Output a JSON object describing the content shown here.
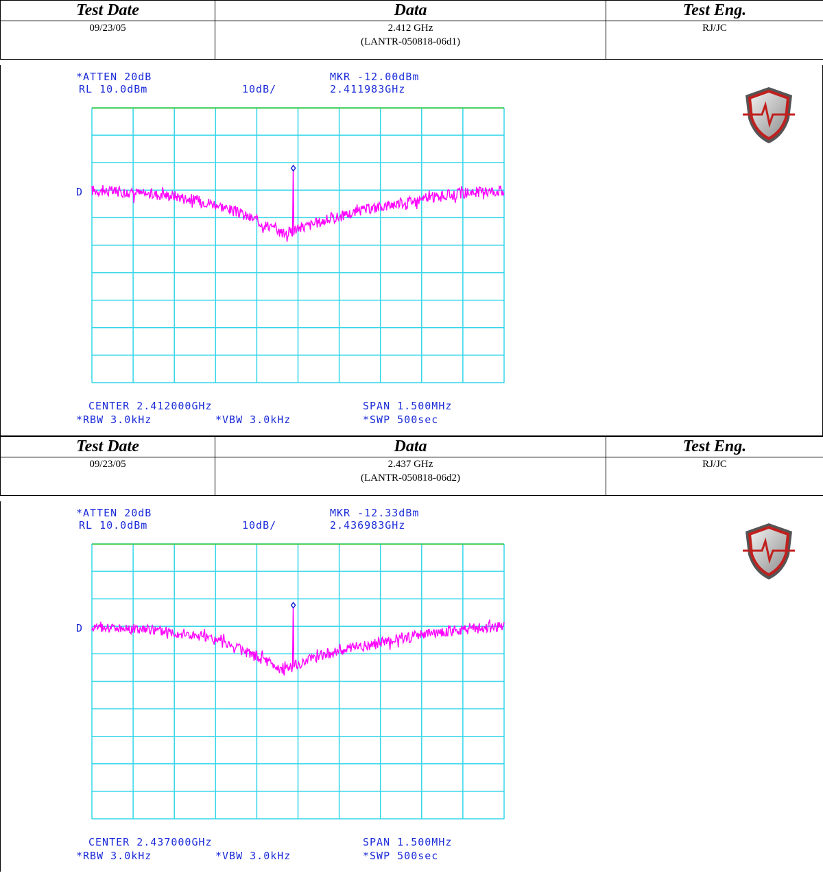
{
  "headers": {
    "test_date": "Test Date",
    "data": "Data",
    "test_eng": "Test Eng."
  },
  "colors": {
    "grid": "#33d6e8",
    "trace": "#ff00ff",
    "ref_line": "#44cc44",
    "text": "#1a2bd8",
    "marker": "#1a2bd8"
  },
  "logo_icon": "shield-waveform-icon",
  "chart_data": [
    {
      "type": "line",
      "record": {
        "test_date": "09/23/05",
        "frequency": "2.412 GHz",
        "file_id": "(LANTR-050818-06d1)",
        "test_eng": "RJ/JC"
      },
      "annotations": {
        "atten": "*ATTEN 20dB",
        "ref_level": "RL 10.0dBm",
        "scale": "10dB/",
        "marker_level": "MKR -12.00dBm",
        "marker_freq": "2.411983GHz",
        "center": "CENTER 2.412000GHz",
        "span": "SPAN 1.500MHz",
        "rbw": "*RBW 3.0kHz",
        "vbw": "*VBW 3.0kHz",
        "sweep": "*SWP 500sec",
        "detector": "D"
      },
      "x_unit": "MHz offset",
      "xlim": [
        -0.75,
        0.75
      ],
      "ylim": [
        -90,
        10
      ],
      "grid": true,
      "ref_line_dbm": 10,
      "marker": {
        "x": -0.017,
        "y": -12.0
      },
      "baseline_points": [
        [
          -0.75,
          -20
        ],
        [
          -0.6,
          -21
        ],
        [
          -0.45,
          -22
        ],
        [
          -0.3,
          -25
        ],
        [
          -0.15,
          -31
        ],
        [
          -0.05,
          -36
        ],
        [
          0.0,
          -34
        ],
        [
          0.1,
          -31
        ],
        [
          0.25,
          -27
        ],
        [
          0.4,
          -24
        ],
        [
          0.6,
          -21
        ],
        [
          0.75,
          -20
        ]
      ]
    },
    {
      "type": "line",
      "record": {
        "test_date": "09/23/05",
        "frequency": "2.437 GHz",
        "file_id": "(LANTR-050818-06d2)",
        "test_eng": "RJ/JC"
      },
      "annotations": {
        "atten": "*ATTEN 20dB",
        "ref_level": "RL 10.0dBm",
        "scale": "10dB/",
        "marker_level": "MKR -12.33dBm",
        "marker_freq": "2.436983GHz",
        "center": "CENTER 2.437000GHz",
        "span": "SPAN 1.500MHz",
        "rbw": "*RBW 3.0kHz",
        "vbw": "*VBW 3.0kHz",
        "sweep": "*SWP 500sec",
        "detector": "D"
      },
      "x_unit": "MHz offset",
      "xlim": [
        -0.75,
        0.75
      ],
      "ylim": [
        -90,
        10
      ],
      "grid": true,
      "ref_line_dbm": 10,
      "marker": {
        "x": -0.017,
        "y": -12.33
      },
      "baseline_points": [
        [
          -0.75,
          -20
        ],
        [
          -0.6,
          -21
        ],
        [
          -0.45,
          -22
        ],
        [
          -0.3,
          -25
        ],
        [
          -0.15,
          -31
        ],
        [
          -0.05,
          -36
        ],
        [
          0.0,
          -34
        ],
        [
          0.1,
          -30
        ],
        [
          0.25,
          -27
        ],
        [
          0.4,
          -24
        ],
        [
          0.6,
          -21
        ],
        [
          0.75,
          -20
        ]
      ]
    }
  ]
}
